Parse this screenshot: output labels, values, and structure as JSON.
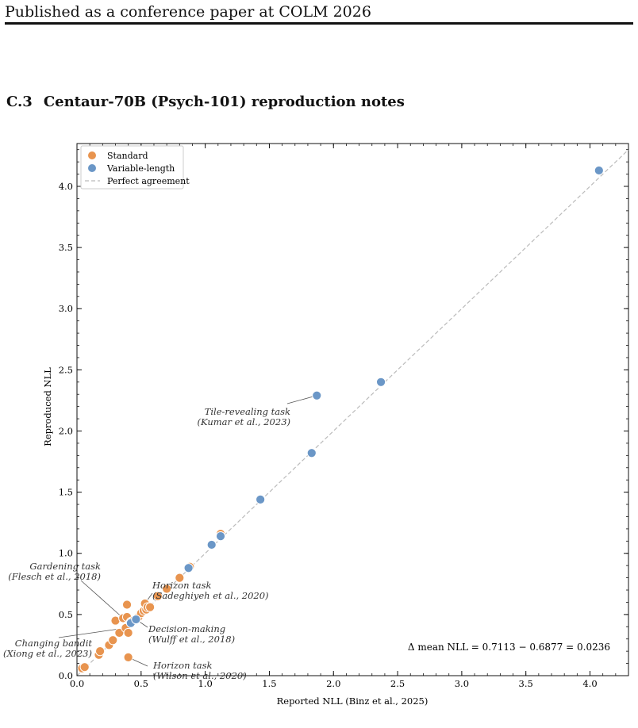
{
  "header": {
    "running_head": "Published as a conference paper at COLM 2026"
  },
  "section": {
    "number": "C.3",
    "title": "Centaur-70B (Psych-101) reproduction notes"
  },
  "chart_data": {
    "type": "scatter",
    "xlabel": "Reported NLL (Binz et al., 2025)",
    "ylabel": "Reproduced NLL",
    "xlim": [
      0,
      4.3
    ],
    "ylim": [
      0,
      4.35
    ],
    "xticks": [
      "0.0",
      "0.5",
      "1.0",
      "1.5",
      "2.0",
      "2.5",
      "3.0",
      "3.5",
      "4.0"
    ],
    "yticks": [
      "0.0",
      "0.5",
      "1.0",
      "1.5",
      "2.0",
      "2.5",
      "3.0",
      "3.5",
      "4.0"
    ],
    "grid": false,
    "legend_position": "top-left",
    "legend": [
      "Standard",
      "Variable-length",
      "Perfect agreement"
    ],
    "colors": {
      "standard": "#E8944F",
      "variable": "#6B97C7",
      "diagonal": "#BBBBBB"
    },
    "series": [
      {
        "name": "Standard",
        "points": [
          [
            0.04,
            0.06
          ],
          [
            0.06,
            0.07
          ],
          [
            0.17,
            0.17
          ],
          [
            0.18,
            0.2
          ],
          [
            0.25,
            0.25
          ],
          [
            0.28,
            0.29
          ],
          [
            0.3,
            0.45
          ],
          [
            0.33,
            0.35
          ],
          [
            0.36,
            0.47
          ],
          [
            0.38,
            0.39
          ],
          [
            0.39,
            0.48
          ],
          [
            0.39,
            0.58
          ],
          [
            0.4,
            0.35
          ],
          [
            0.4,
            0.15
          ],
          [
            0.42,
            0.44
          ],
          [
            0.44,
            0.45
          ],
          [
            0.46,
            0.46
          ],
          [
            0.48,
            0.48
          ],
          [
            0.5,
            0.51
          ],
          [
            0.52,
            0.53
          ],
          [
            0.53,
            0.59
          ],
          [
            0.54,
            0.54
          ],
          [
            0.55,
            0.56
          ],
          [
            0.57,
            0.56
          ],
          [
            0.63,
            0.65
          ],
          [
            0.7,
            0.71
          ],
          [
            0.8,
            0.8
          ],
          [
            0.88,
            0.89
          ],
          [
            1.12,
            1.16
          ]
        ]
      },
      {
        "name": "Variable-length",
        "points": [
          [
            0.42,
            0.43
          ],
          [
            0.46,
            0.46
          ],
          [
            0.87,
            0.88
          ],
          [
            1.05,
            1.07
          ],
          [
            1.12,
            1.14
          ],
          [
            1.43,
            1.44
          ],
          [
            1.83,
            1.82
          ],
          [
            1.87,
            2.29
          ],
          [
            2.37,
            2.4
          ],
          [
            4.07,
            4.13
          ]
        ]
      }
    ],
    "annotations": [
      {
        "label": "Tile-revealing task",
        "cite": "(Kumar et al., 2023)",
        "target": [
          1.87,
          2.29
        ],
        "side": "left"
      },
      {
        "label": "Gardening task",
        "cite": "(Flesch et al., 2018)",
        "target": [
          0.36,
          0.47
        ],
        "side": "left"
      },
      {
        "label": "Horizon task",
        "cite": "(Sadeghiyeh et al., 2020)",
        "target": [
          0.53,
          0.59
        ],
        "side": "right"
      },
      {
        "label": "Decision-making",
        "cite": "(Wulff et al., 2018)",
        "target": [
          0.46,
          0.46
        ],
        "side": "right"
      },
      {
        "label": "Changing bandit",
        "cite": "(Xiong et al., 2023)",
        "target": [
          0.38,
          0.39
        ],
        "side": "left"
      },
      {
        "label": "Horizon task",
        "cite": "(Wilson et al., 2020)",
        "target": [
          0.4,
          0.15
        ],
        "side": "right"
      }
    ],
    "stat_text": "Δ mean NLL = 0.7113 − 0.6877 = 0.0236"
  }
}
